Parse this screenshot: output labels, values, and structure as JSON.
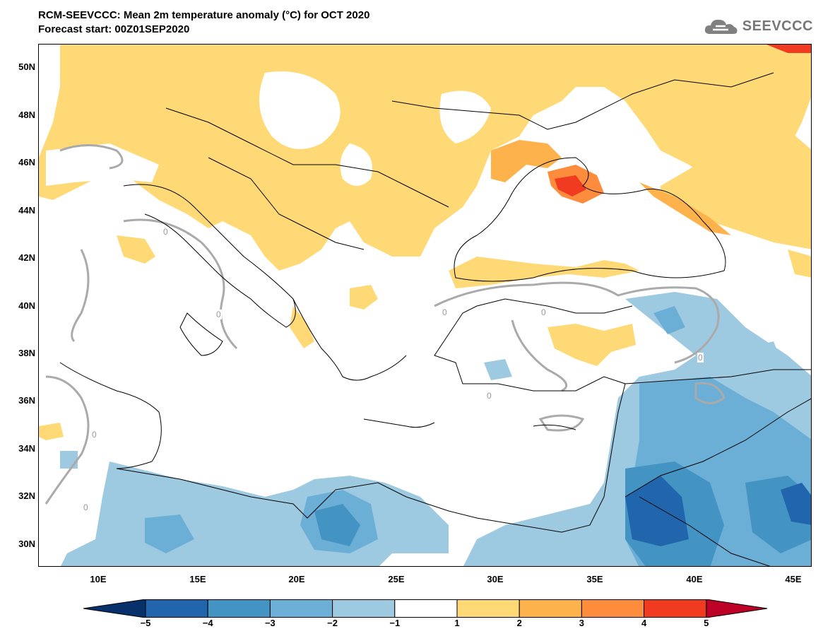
{
  "header": {
    "title_line1": "RCM-SEEVCCC: Mean 2m temperature anomaly (°C) for OCT 2020",
    "title_line2": "Forecast start: 00Z01SEP2020"
  },
  "logo": {
    "text": "SEEVCCC",
    "icon": "cloud-icon"
  },
  "axes": {
    "lat_labels": [
      "50N",
      "48N",
      "46N",
      "44N",
      "42N",
      "40N",
      "38N",
      "36N",
      "34N",
      "32N",
      "30N"
    ],
    "lon_labels": [
      "10E",
      "15E",
      "20E",
      "25E",
      "30E",
      "35E",
      "40E",
      "45E"
    ],
    "lat_values": [
      50,
      48,
      46,
      44,
      42,
      40,
      38,
      36,
      34,
      32,
      30
    ],
    "lon_values": [
      10,
      15,
      20,
      25,
      30,
      35,
      40,
      45
    ],
    "lon_range": [
      7,
      45.5
    ],
    "lat_range": [
      29,
      51
    ]
  },
  "colorbar": {
    "labels": [
      "−5",
      "−4",
      "−3",
      "−2",
      "−1",
      "1",
      "2",
      "3",
      "4",
      "5"
    ],
    "colors": [
      "#08306b",
      "#2166ac",
      "#4393c3",
      "#6baed6",
      "#9ecae1",
      "#ffffff",
      "#fed976",
      "#feb24c",
      "#fd8d3c",
      "#f03b20",
      "#bd0026"
    ]
  },
  "contour_labels": [
    "0",
    "0",
    "0",
    "0",
    "0",
    "0",
    "0",
    "0"
  ],
  "colors": {
    "warm1": "#fed976",
    "warm2": "#feb24c",
    "warm3": "#fd8d3c",
    "warm4": "#f03b20",
    "cool1": "#9ecae1",
    "cool2": "#6baed6",
    "cool3": "#4393c3",
    "cool4": "#2166ac"
  }
}
